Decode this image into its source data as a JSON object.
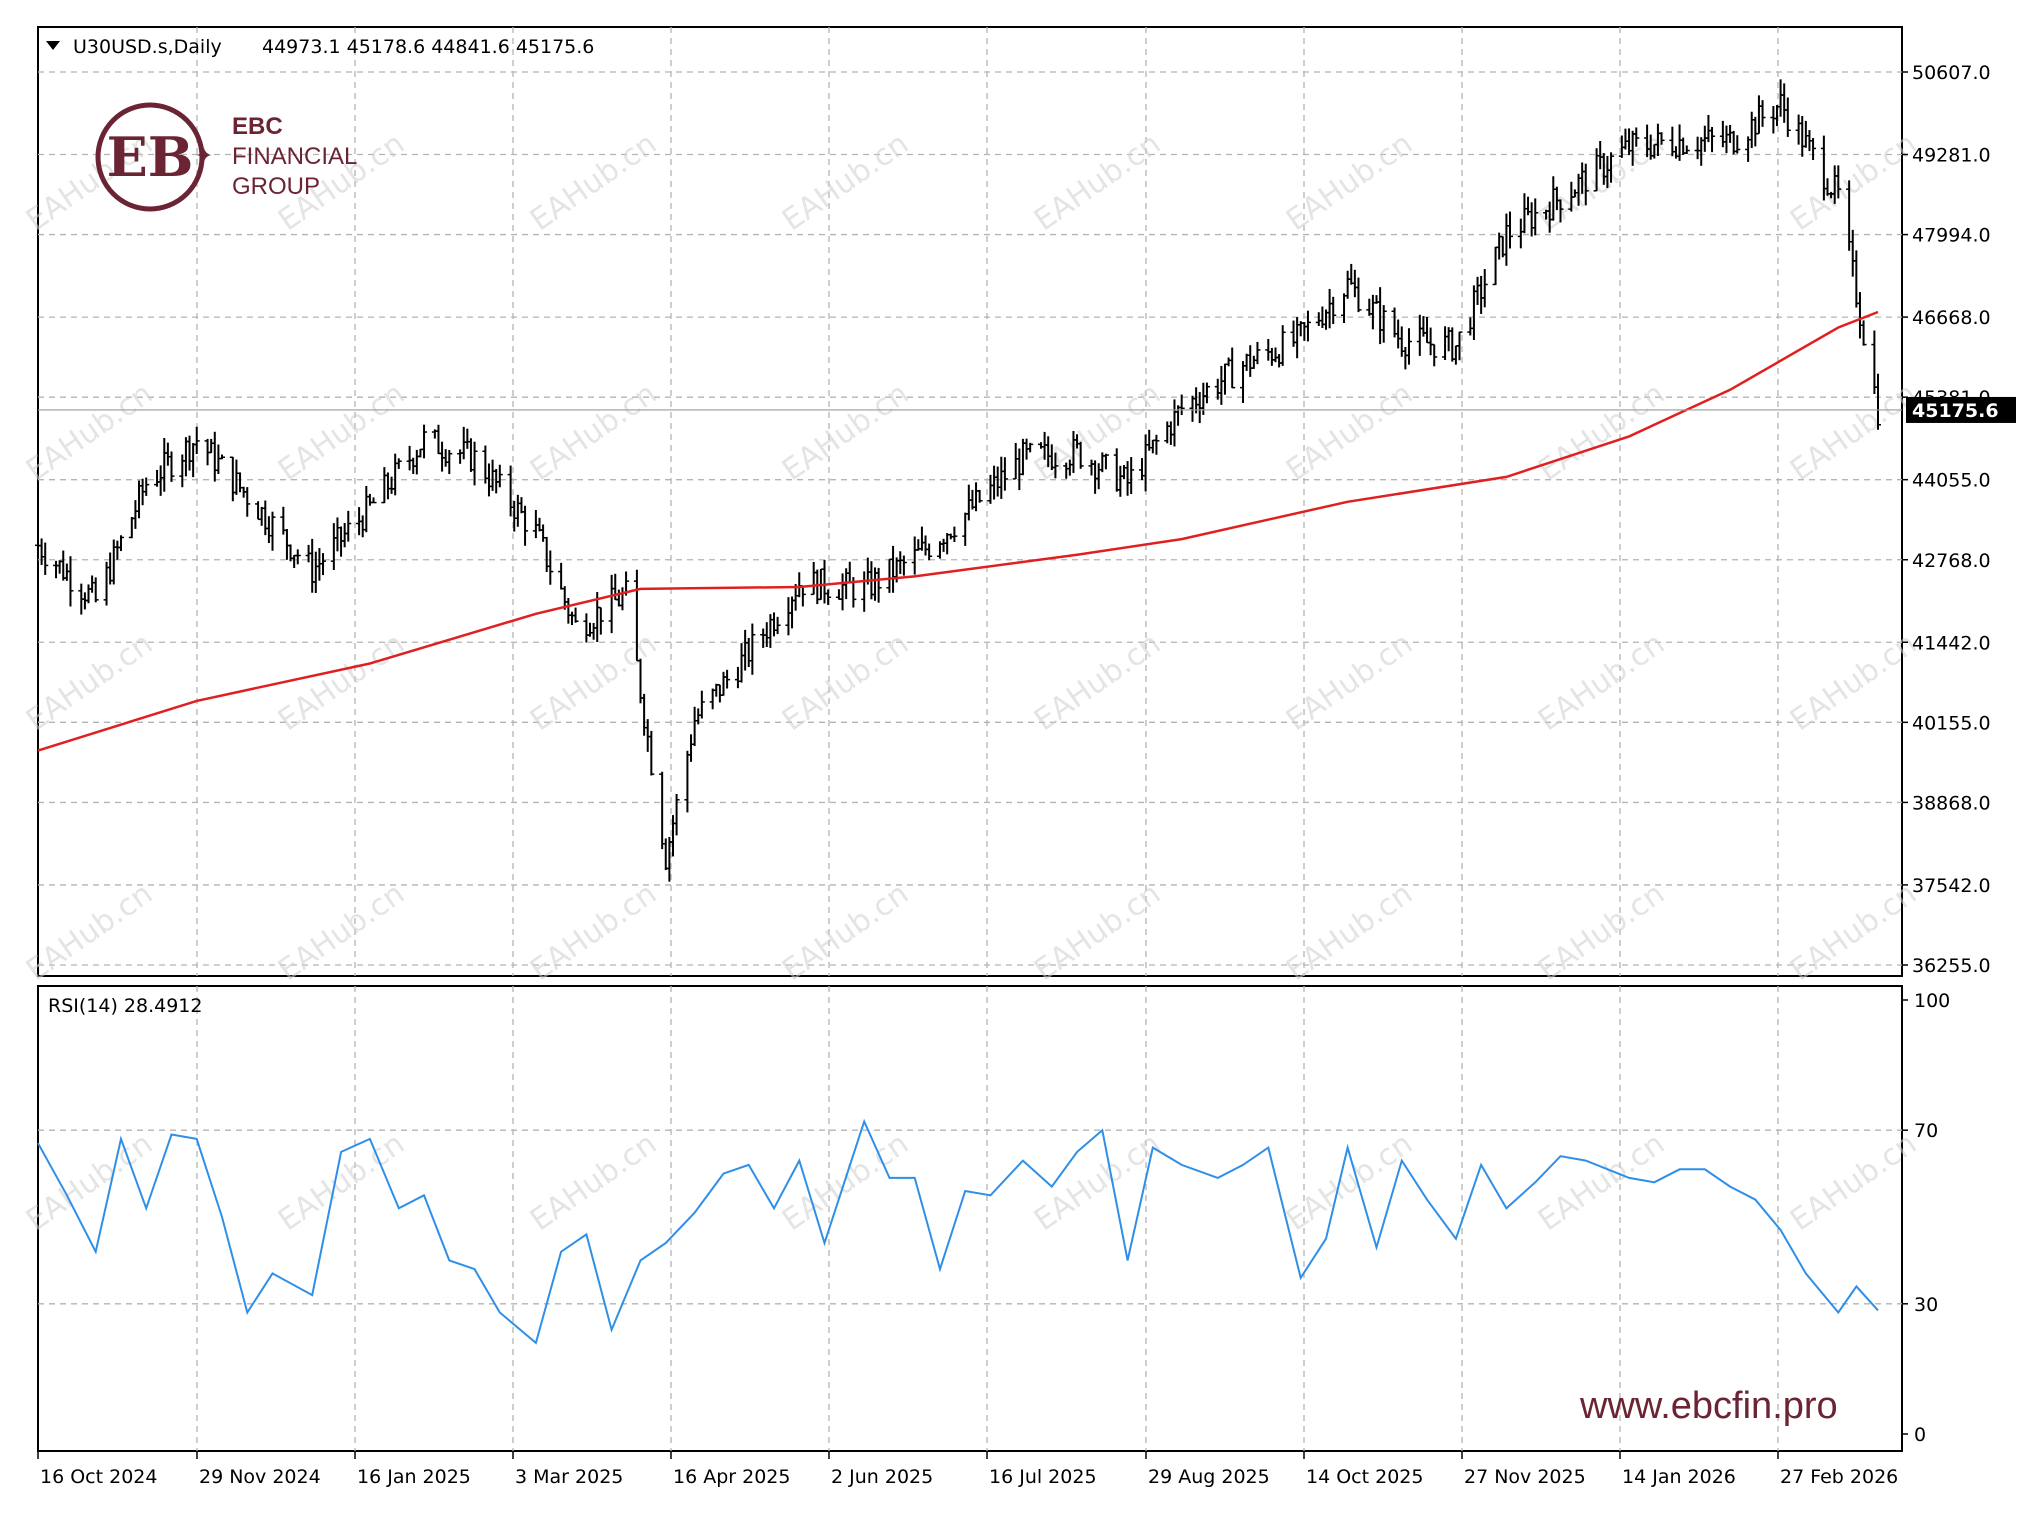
{
  "symbol_header": {
    "symbol": "U30USD.s,Daily",
    "ohlc": "44973.1 45178.6 44841.6 45175.6"
  },
  "brand": {
    "name_line1": "EBC",
    "name_line2": "FINANCIAL",
    "name_line3": "GROUP",
    "url": "www.ebcfin.pro",
    "color": "#6b2433"
  },
  "watermark": "EAHub.cn",
  "price_axis": {
    "ticks": [
      "50607.0",
      "49281.0",
      "47994.0",
      "46668.0",
      "45381.0",
      "44055.0",
      "42768.0",
      "41442.0",
      "40155.0",
      "38868.0",
      "37542.0",
      "36255.0"
    ],
    "current_price": "45175.6"
  },
  "rsi_panel": {
    "label": "RSI(14) 28.4912",
    "levels": [
      "100",
      "70",
      "30",
      "0"
    ]
  },
  "x_axis": {
    "labels": [
      "16 Oct 2024",
      "29 Nov 2024",
      "16 Jan 2025",
      "3 Mar 2025",
      "16 Apr 2025",
      "2 Jun 2025",
      "16 Jul 2025",
      "29 Aug 2025",
      "14 Oct 2025",
      "27 Nov 2025",
      "14 Jan 2026",
      "27 Feb 2026"
    ]
  },
  "colors": {
    "bars": "#000000",
    "ma_line": "#e02020",
    "rsi_line": "#2f8fe8",
    "grid": "#b4b4b4"
  },
  "chart_data": [
    {
      "type": "ohlc",
      "title": "U30USD.s,Daily",
      "ylim": [
        36255.0,
        51000.0
      ],
      "series": [
        {
          "name": "price",
          "x": [
            "2024-10-16",
            "2024-11-01",
            "2024-11-15",
            "2024-11-29",
            "2024-12-13",
            "2024-12-31",
            "2025-01-16",
            "2025-01-31",
            "2025-02-14",
            "2025-03-03",
            "2025-03-14",
            "2025-03-28",
            "2025-04-08",
            "2025-04-16",
            "2025-04-30",
            "2025-05-15",
            "2025-06-02",
            "2025-06-16",
            "2025-06-30",
            "2025-07-16",
            "2025-07-31",
            "2025-08-14",
            "2025-08-29",
            "2025-09-15",
            "2025-09-30",
            "2025-10-14",
            "2025-10-29",
            "2025-11-13",
            "2025-11-27",
            "2025-12-12",
            "2025-12-31",
            "2026-01-14",
            "2026-01-28",
            "2026-02-11",
            "2026-02-27",
            "2026-03-10"
          ],
          "close": [
            43000,
            42100,
            44000,
            44700,
            43800,
            42600,
            43600,
            44700,
            44400,
            43200,
            41700,
            42200,
            38000,
            40200,
            41200,
            42400,
            42300,
            42800,
            43500,
            44400,
            44500,
            44000,
            45200,
            45900,
            46300,
            47200,
            46300,
            46200,
            48000,
            48600,
            49400,
            49500,
            49500,
            50100,
            48600,
            45175.6
          ]
        },
        {
          "name": "moving average",
          "x": [
            "2024-10-16",
            "2024-11-29",
            "2025-01-16",
            "2025-03-03",
            "2025-04-01",
            "2025-05-15",
            "2025-06-16",
            "2025-07-31",
            "2025-08-29",
            "2025-10-14",
            "2025-11-27",
            "2025-12-31",
            "2026-01-28",
            "2026-02-27",
            "2026-03-10"
          ],
          "values": [
            39700,
            40500,
            41100,
            41900,
            42300,
            42330,
            42500,
            42850,
            43100,
            43700,
            44100,
            44750,
            45500,
            46500,
            46750
          ]
        }
      ]
    },
    {
      "type": "line",
      "title": "RSI(14) 28.4912",
      "ylim": [
        0,
        100
      ],
      "series": [
        {
          "name": "RSI(14)",
          "x": [
            "2024-10-16",
            "2024-10-24",
            "2024-11-01",
            "2024-11-08",
            "2024-11-15",
            "2024-11-22",
            "2024-11-29",
            "2024-12-06",
            "2024-12-13",
            "2024-12-20",
            "2024-12-31",
            "2025-01-08",
            "2025-01-16",
            "2025-01-24",
            "2025-01-31",
            "2025-02-07",
            "2025-02-14",
            "2025-02-21",
            "2025-03-03",
            "2025-03-10",
            "2025-03-17",
            "2025-03-24",
            "2025-04-01",
            "2025-04-08",
            "2025-04-16",
            "2025-04-24",
            "2025-05-01",
            "2025-05-08",
            "2025-05-15",
            "2025-05-22",
            "2025-06-02",
            "2025-06-09",
            "2025-06-16",
            "2025-06-23",
            "2025-06-30",
            "2025-07-07",
            "2025-07-16",
            "2025-07-24",
            "2025-07-31",
            "2025-08-07",
            "2025-08-14",
            "2025-08-21",
            "2025-08-29",
            "2025-09-08",
            "2025-09-15",
            "2025-09-22",
            "2025-10-01",
            "2025-10-08",
            "2025-10-14",
            "2025-10-22",
            "2025-10-29",
            "2025-11-05",
            "2025-11-13",
            "2025-11-20",
            "2025-11-27",
            "2025-12-05",
            "2025-12-12",
            "2025-12-19",
            "2025-12-31",
            "2026-01-07",
            "2026-01-14",
            "2026-01-21",
            "2026-01-28",
            "2026-02-04",
            "2026-02-11",
            "2026-02-18",
            "2026-02-27",
            "2026-03-04",
            "2026-03-10"
          ],
          "values": [
            67,
            55,
            42,
            68,
            52,
            69,
            68,
            50,
            28,
            37,
            32,
            65,
            68,
            52,
            55,
            40,
            38,
            28,
            21,
            42,
            46,
            24,
            40,
            44,
            51,
            60,
            62,
            52,
            63,
            44,
            72,
            59,
            59,
            38,
            56,
            55,
            63,
            57,
            65,
            70,
            40,
            66,
            62,
            59,
            62,
            66,
            36,
            45,
            66,
            43,
            63,
            54,
            45,
            62,
            52,
            58,
            64,
            63,
            59,
            58,
            61,
            61,
            57,
            54,
            47,
            37,
            28,
            34,
            28.49
          ]
        }
      ]
    }
  ]
}
